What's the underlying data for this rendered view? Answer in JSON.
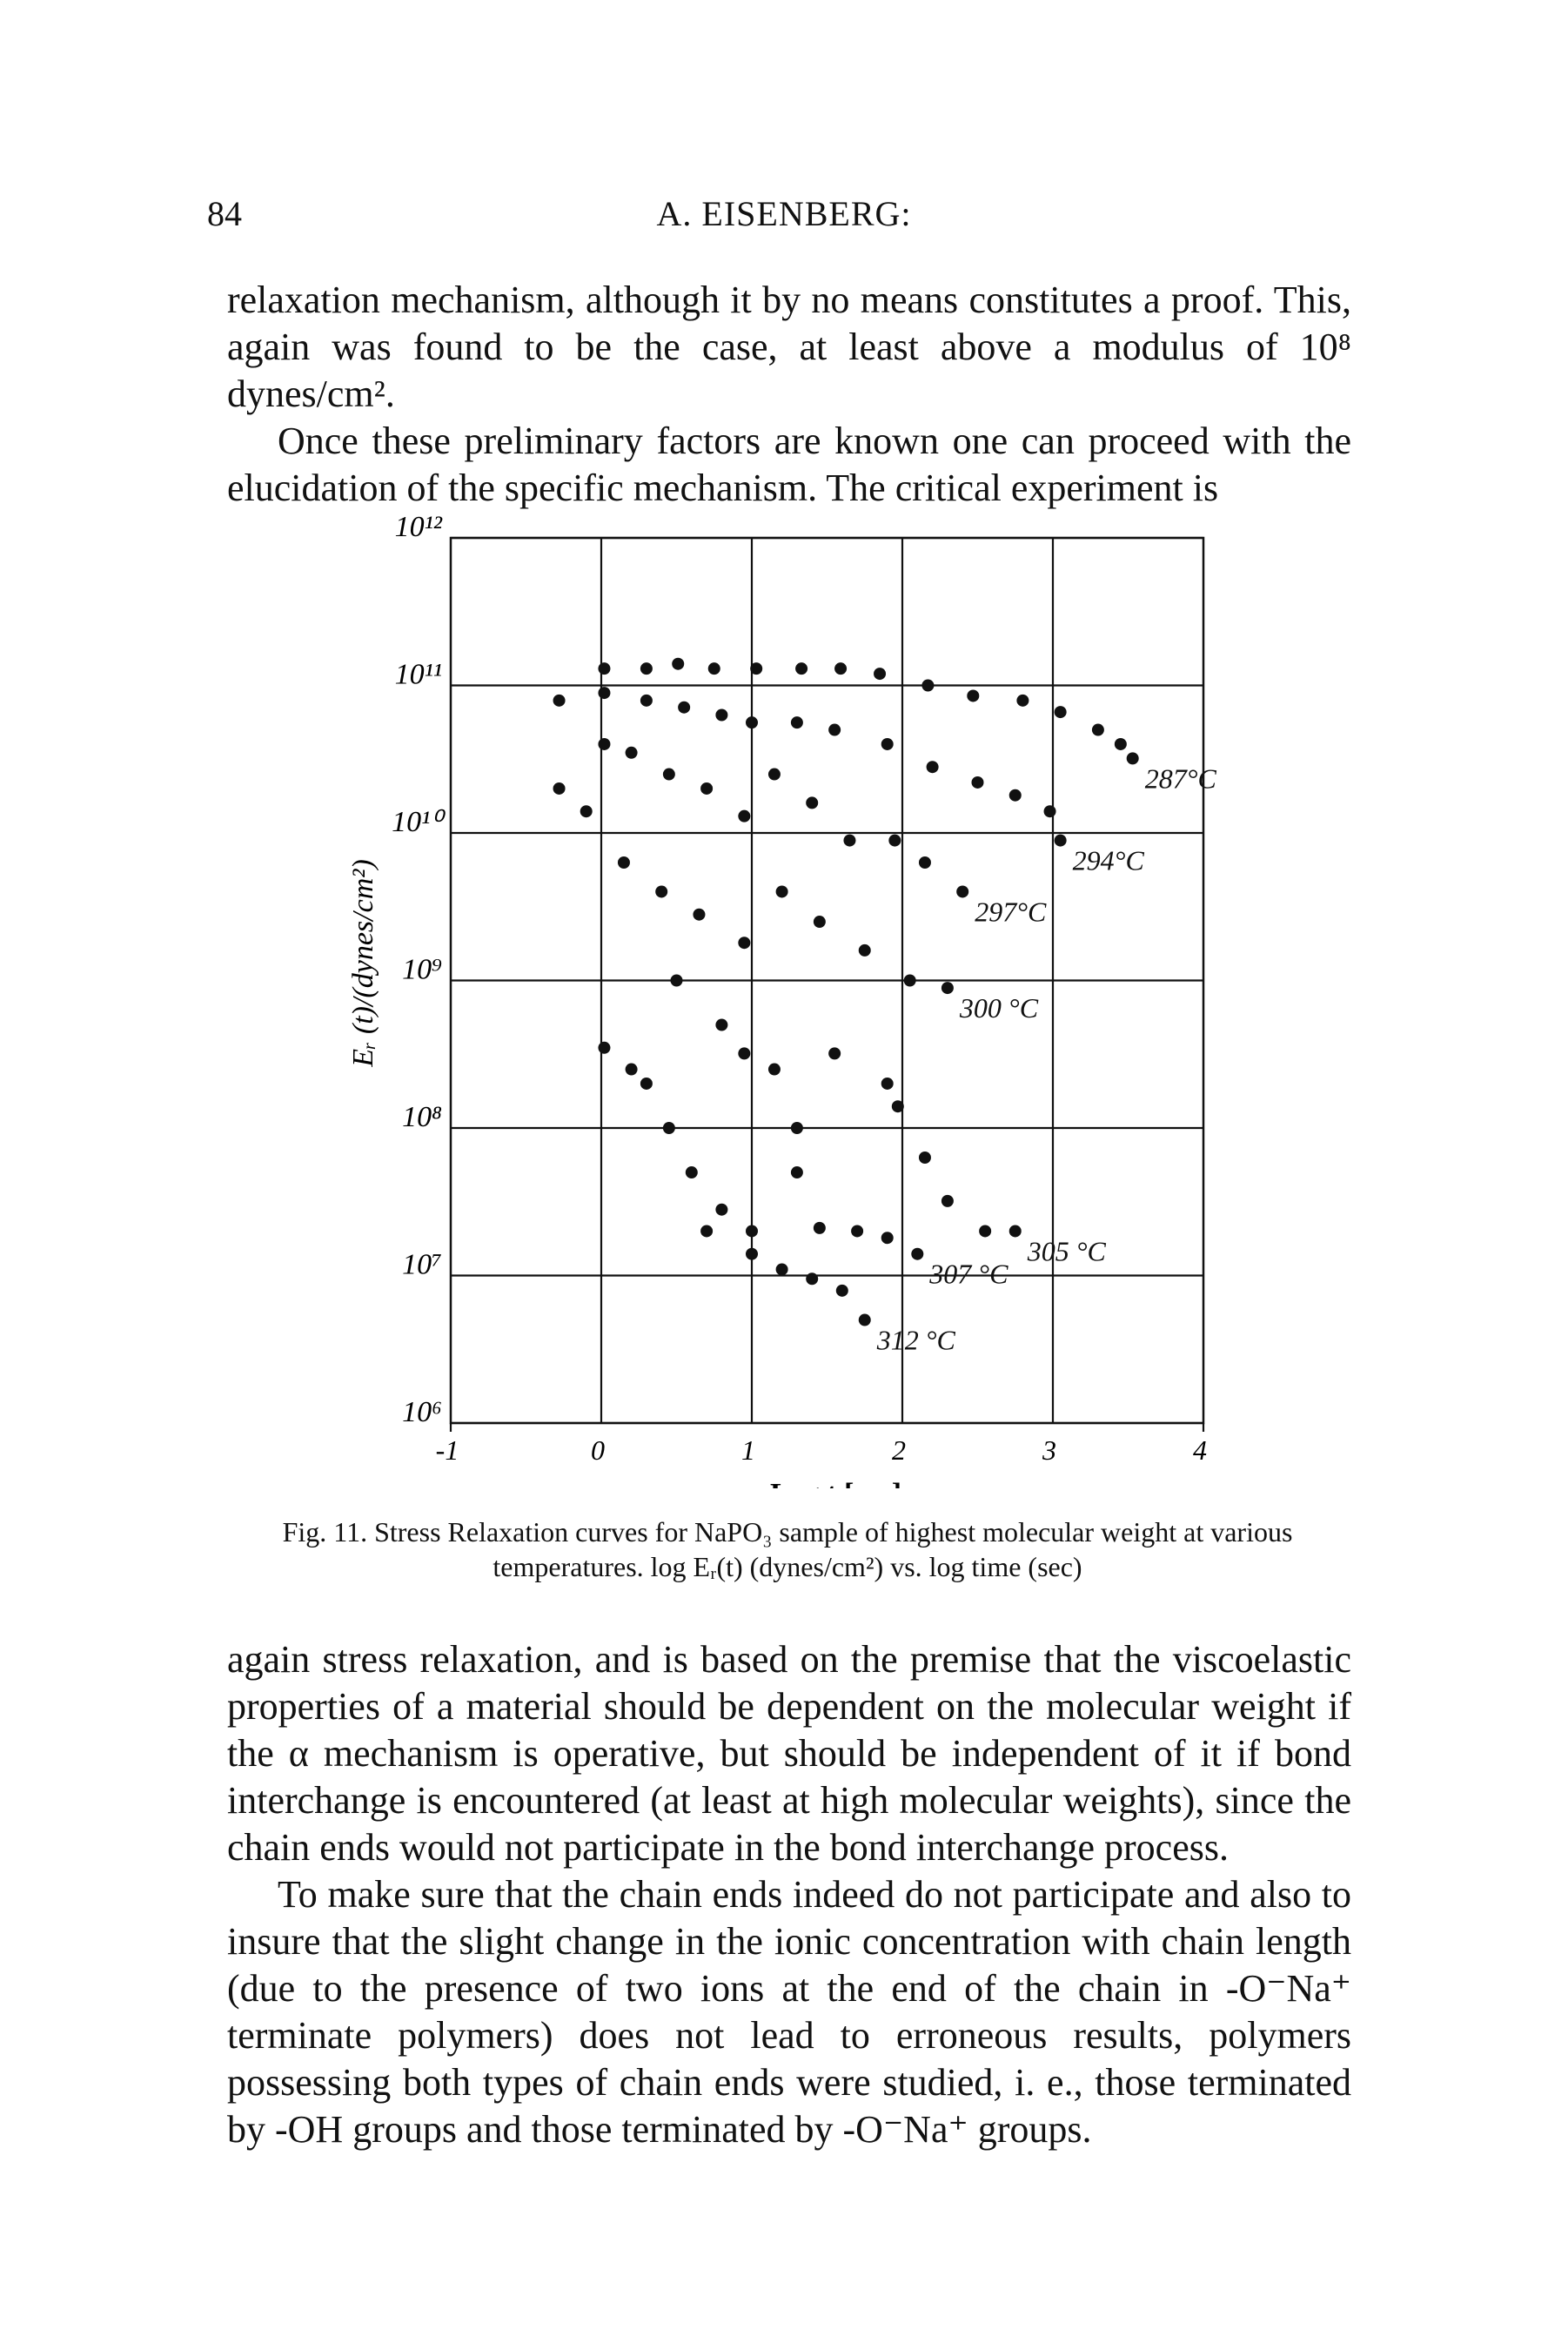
{
  "header": {
    "page_number": "84",
    "running_title": "A. EISENBERG:"
  },
  "paragraphs_before": [
    "relaxation mechanism, although it by no means constitutes a proof. This, again was found to be the case, at least above a modulus of 10⁸ dynes/cm².",
    "Once these preliminary factors are known one can proceed with the elucidation of the specific mechanism. The critical experiment is"
  ],
  "chart_data": {
    "type": "scatter",
    "xlabel": "Log t [sec]",
    "ylabel": "Eᵣ (t)/(dynes/cm²)",
    "xlim": [
      -1,
      4
    ],
    "xticks": [
      -1,
      0,
      1,
      2,
      3,
      4
    ],
    "ylim": [
      1000000.0,
      1000000000000.0
    ],
    "log_y": true,
    "yticks": [
      {
        "value": 1000000.0,
        "label": "10⁶"
      },
      {
        "value": 10000000.0,
        "label": "10⁷"
      },
      {
        "value": 100000000.0,
        "label": "10⁸"
      },
      {
        "value": 1000000000.0,
        "label": "10⁹"
      },
      {
        "value": 10000000000.0,
        "label": "10¹⁰"
      },
      {
        "value": 100000000000.0,
        "label": "10¹¹"
      },
      {
        "value": 1000000000000.0,
        "label": "10¹²"
      }
    ],
    "grid": true,
    "series": [
      {
        "name": "287°C",
        "color": "#111111",
        "x": [
          0.02,
          0.3,
          0.51,
          0.75,
          1.03,
          1.33,
          1.59,
          1.85,
          2.17,
          2.47,
          2.8,
          3.05,
          3.3,
          3.45,
          3.53
        ],
        "values": [
          130000000000.0,
          130000000000.0,
          140000000000.0,
          130000000000.0,
          130000000000.0,
          130000000000.0,
          130000000000.0,
          120000000000.0,
          100000000000.0,
          85000000000.0,
          79000000000.0,
          66000000000.0,
          50000000000.0,
          40000000000.0,
          32000000000.0
        ]
      },
      {
        "name": "294°C",
        "color": "#111111",
        "x": [
          -0.28,
          0.02,
          0.3,
          0.55,
          0.8,
          1.0,
          1.3,
          1.55,
          1.9,
          2.2,
          2.5,
          2.75,
          2.98,
          3.05
        ],
        "values": [
          79000000000.0,
          89000000000.0,
          79000000000.0,
          71000000000.0,
          63000000000.0,
          56000000000.0,
          56000000000.0,
          50000000000.0,
          40000000000.0,
          28000000000.0,
          22000000000.0,
          18000000000.0,
          14000000000.0,
          8900000000.0
        ]
      },
      {
        "name": "297°C",
        "color": "#111111",
        "x": [
          -0.28,
          -0.1,
          0.02,
          0.2,
          0.45,
          0.7,
          0.95,
          1.15,
          1.4,
          1.65,
          1.95,
          2.15,
          2.4
        ],
        "values": [
          20000000000.0,
          14000000000.0,
          40000000000.0,
          35000000000.0,
          25000000000.0,
          20000000000.0,
          13000000000.0,
          25000000000.0,
          16000000000.0,
          8900000000.0,
          8900000000.0,
          6300000000.0,
          4000000000.0
        ]
      },
      {
        "name": "300 °C",
        "color": "#111111",
        "x": [
          0.15,
          0.4,
          0.65,
          0.95,
          1.2,
          1.45,
          1.75,
          2.05,
          2.3
        ],
        "values": [
          6300000000.0,
          4000000000.0,
          2800000000.0,
          1800000000.0,
          4000000000.0,
          2500000000.0,
          1600000000.0,
          1000000000.0,
          890000000.0
        ]
      },
      {
        "name": "305 °C",
        "color": "#111111",
        "x": [
          0.02,
          0.2,
          0.3,
          0.5,
          0.8,
          0.95,
          1.15,
          1.3,
          1.55,
          1.9,
          1.97,
          2.15,
          2.3,
          2.55,
          2.75
        ],
        "values": [
          350000000.0,
          250000000.0,
          200000000.0,
          1000000000.0,
          500000000.0,
          320000000.0,
          250000000.0,
          100000000.0,
          320000000.0,
          200000000.0,
          140000000.0,
          63000000.0,
          32000000.0,
          20000000.0,
          20000000.0
        ]
      },
      {
        "name": "307 °C",
        "color": "#111111",
        "x": [
          0.45,
          0.6,
          0.8,
          1.0,
          1.3,
          1.45,
          1.7,
          1.9,
          2.1
        ],
        "values": [
          100000000.0,
          50000000.0,
          28000000.0,
          20000000.0,
          50000000.0,
          21000000.0,
          20000000.0,
          18000000.0,
          14000000.0
        ]
      },
      {
        "name": "312 °C",
        "color": "#111111",
        "x": [
          0.7,
          1.0,
          1.2,
          1.4,
          1.6,
          1.75
        ],
        "values": [
          20000000.0,
          14000000.0,
          11000000.0,
          9500000.0,
          7900000.0,
          5000000.0
        ]
      }
    ]
  },
  "caption": "Fig. 11. Stress Relaxation curves for NaPO₃ sample of highest molecular weight at various temperatures. log Eᵣ(t) (dynes/cm²) vs. log time (sec)",
  "paragraphs_after": [
    "again stress relaxation, and is based on the premise that the viscoelastic properties of a material should be dependent on the molecular weight if the α mechanism is operative, but should be independent of it if bond interchange is encountered (at least at high molecular weights), since the chain ends would not participate in the bond interchange process.",
    "To make sure that the chain ends indeed do not participate and also to insure that the slight change in the ionic concentration with chain length (due to the presence of two ions at the end of the chain in -O⁻Na⁺ terminate polymers) does not lead to erroneous results, polymers possessing both types of chain ends were studied, i. e., those terminated by -OH groups and those terminated by -O⁻Na⁺ groups."
  ]
}
